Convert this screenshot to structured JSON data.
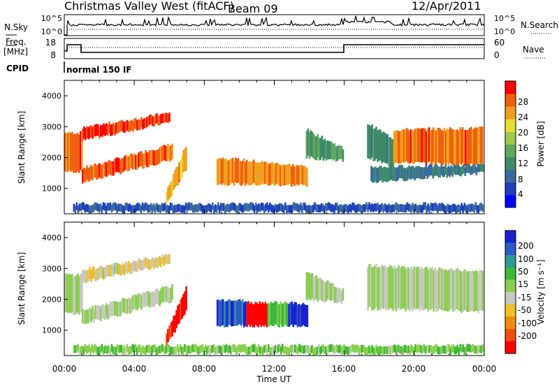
{
  "header": {
    "title": "Christmas Valley West (fitACF)",
    "beam": "Beam 09",
    "date": "12/Apr/2011"
  },
  "noise_panel": {
    "left_label": "N.Sky",
    "right_label": "N.Search",
    "left_ticks": [
      "10^5",
      "10^0"
    ],
    "right_ticks": [
      "10^5",
      "10^0"
    ]
  },
  "freq_panel": {
    "left_label_1": "Freq.",
    "left_label_2": "[MHz]",
    "right_label": "Nave",
    "left_ticks": [
      "18",
      "8"
    ],
    "right_ticks": [
      "60",
      "0"
    ]
  },
  "cpid": {
    "label": "CPID",
    "mode": "normal 150 IF"
  },
  "axes": {
    "ylabel": "Slant Range [km]",
    "xlabel": "Time UT",
    "y_ticks": [
      "1000",
      "2000",
      "3000",
      "4000"
    ],
    "x_ticks": [
      "00:00",
      "04:00",
      "08:00",
      "12:00",
      "16:00",
      "20:00",
      "00:00"
    ]
  },
  "power_colorbar": {
    "label": "Power [dB]",
    "ticks": [
      "4",
      "8",
      "12",
      "16",
      "20",
      "24",
      "28"
    ],
    "colors": [
      "#0000ff",
      "#2040c0",
      "#3a6aa0",
      "#3f8a6a",
      "#5ea85e",
      "#a0c84a",
      "#e8e030",
      "#f0a020",
      "#f06010",
      "#ff0000"
    ]
  },
  "velocity_colorbar": {
    "label": "Velocity [m s⁻¹]",
    "ticks": [
      "200",
      "100",
      "50",
      "15",
      "-15",
      "-50",
      "-100",
      "-200"
    ],
    "colors": [
      "#1a20d0",
      "#2e5ac8",
      "#2f9a9a",
      "#3cb83c",
      "#8ad050",
      "#c8c8c0",
      "#f0c020",
      "#f08c10",
      "#f05010",
      "#ff0000"
    ]
  },
  "chart_data": [
    {
      "type": "heatmap",
      "quantity": "Power",
      "units": "dB",
      "x_range_hours": [
        0,
        24
      ],
      "y_range_km": [
        180,
        4500
      ],
      "color_range": [
        0,
        30
      ],
      "regions": [
        {
          "t": [
            0.0,
            1.0
          ],
          "r_lo": [
            1550,
            1550
          ],
          "r_hi": [
            2800,
            2800
          ],
          "value": 26
        },
        {
          "t": [
            1.0,
            6.2
          ],
          "r_lo": [
            1200,
            1950
          ],
          "r_hi": [
            1650,
            2450
          ],
          "value": 26
        },
        {
          "t": [
            1.0,
            6.0
          ],
          "r_lo": [
            2550,
            3150
          ],
          "r_hi": [
            2950,
            3450
          ],
          "value": 27
        },
        {
          "t": [
            5.8,
            7.0
          ],
          "r_lo": [
            500,
            1700
          ],
          "r_hi": [
            900,
            2500
          ],
          "value": 22
        },
        {
          "t": [
            8.7,
            13.9
          ],
          "r_lo": [
            1150,
            1100
          ],
          "r_hi": [
            2000,
            1700
          ],
          "value": 24
        },
        {
          "t": [
            13.8,
            15.9
          ],
          "r_lo": [
            2000,
            1900
          ],
          "r_hi": [
            2900,
            2300
          ],
          "value": 12
        },
        {
          "t": [
            17.3,
            18.8
          ],
          "r_lo": [
            2000,
            1700
          ],
          "r_hi": [
            3100,
            2600
          ],
          "value": 10
        },
        {
          "t": [
            18.8,
            23.9
          ],
          "r_lo": [
            1850,
            1750
          ],
          "r_hi": [
            2900,
            2950
          ],
          "value": 25
        },
        {
          "t": [
            17.5,
            23.9
          ],
          "r_lo": [
            1200,
            1500
          ],
          "r_hi": [
            1700,
            1750
          ],
          "value": 9
        },
        {
          "t": [
            0.5,
            23.9
          ],
          "r_lo": [
            250,
            250
          ],
          "r_hi": [
            500,
            500
          ],
          "value": 6
        }
      ]
    },
    {
      "type": "heatmap",
      "quantity": "Velocity",
      "units": "m s^-1",
      "x_range_hours": [
        0,
        24
      ],
      "y_range_km": [
        180,
        4500
      ],
      "color_range": [
        -200,
        200
      ],
      "regions": [
        {
          "t": [
            0.0,
            1.0
          ],
          "r_lo": [
            1550,
            1550
          ],
          "r_hi": [
            2800,
            2800
          ],
          "value": 0
        },
        {
          "t": [
            1.0,
            6.2
          ],
          "r_lo": [
            1200,
            1950
          ],
          "r_hi": [
            1650,
            2450
          ],
          "value": 0
        },
        {
          "t": [
            1.0,
            6.0
          ],
          "r_lo": [
            2550,
            3150
          ],
          "r_hi": [
            2950,
            3450
          ],
          "value": -30
        },
        {
          "t": [
            5.8,
            7.0
          ],
          "r_lo": [
            500,
            1700
          ],
          "r_hi": [
            900,
            2500
          ],
          "value": -180
        },
        {
          "t": [
            8.7,
            10.4
          ],
          "r_lo": [
            1150,
            1150
          ],
          "r_hi": [
            2000,
            1950
          ],
          "value": 150
        },
        {
          "t": [
            10.4,
            11.6
          ],
          "r_lo": [
            1150,
            1150
          ],
          "r_hi": [
            1900,
            1900
          ],
          "value": -200
        },
        {
          "t": [
            11.6,
            12.8
          ],
          "r_lo": [
            1150,
            1150
          ],
          "r_hi": [
            1900,
            1900
          ],
          "value": 40
        },
        {
          "t": [
            12.8,
            13.9
          ],
          "r_lo": [
            1150,
            1100
          ],
          "r_hi": [
            1900,
            1800
          ],
          "value": 180
        },
        {
          "t": [
            13.8,
            15.9
          ],
          "r_lo": [
            2000,
            1900
          ],
          "r_hi": [
            2900,
            2300
          ],
          "value": 0
        },
        {
          "t": [
            17.3,
            23.9
          ],
          "r_lo": [
            1700,
            1600
          ],
          "r_hi": [
            3100,
            2900
          ],
          "value": 0
        },
        {
          "t": [
            0.5,
            23.9
          ],
          "r_lo": [
            250,
            250
          ],
          "r_hi": [
            500,
            500
          ],
          "value": 30
        }
      ]
    }
  ]
}
